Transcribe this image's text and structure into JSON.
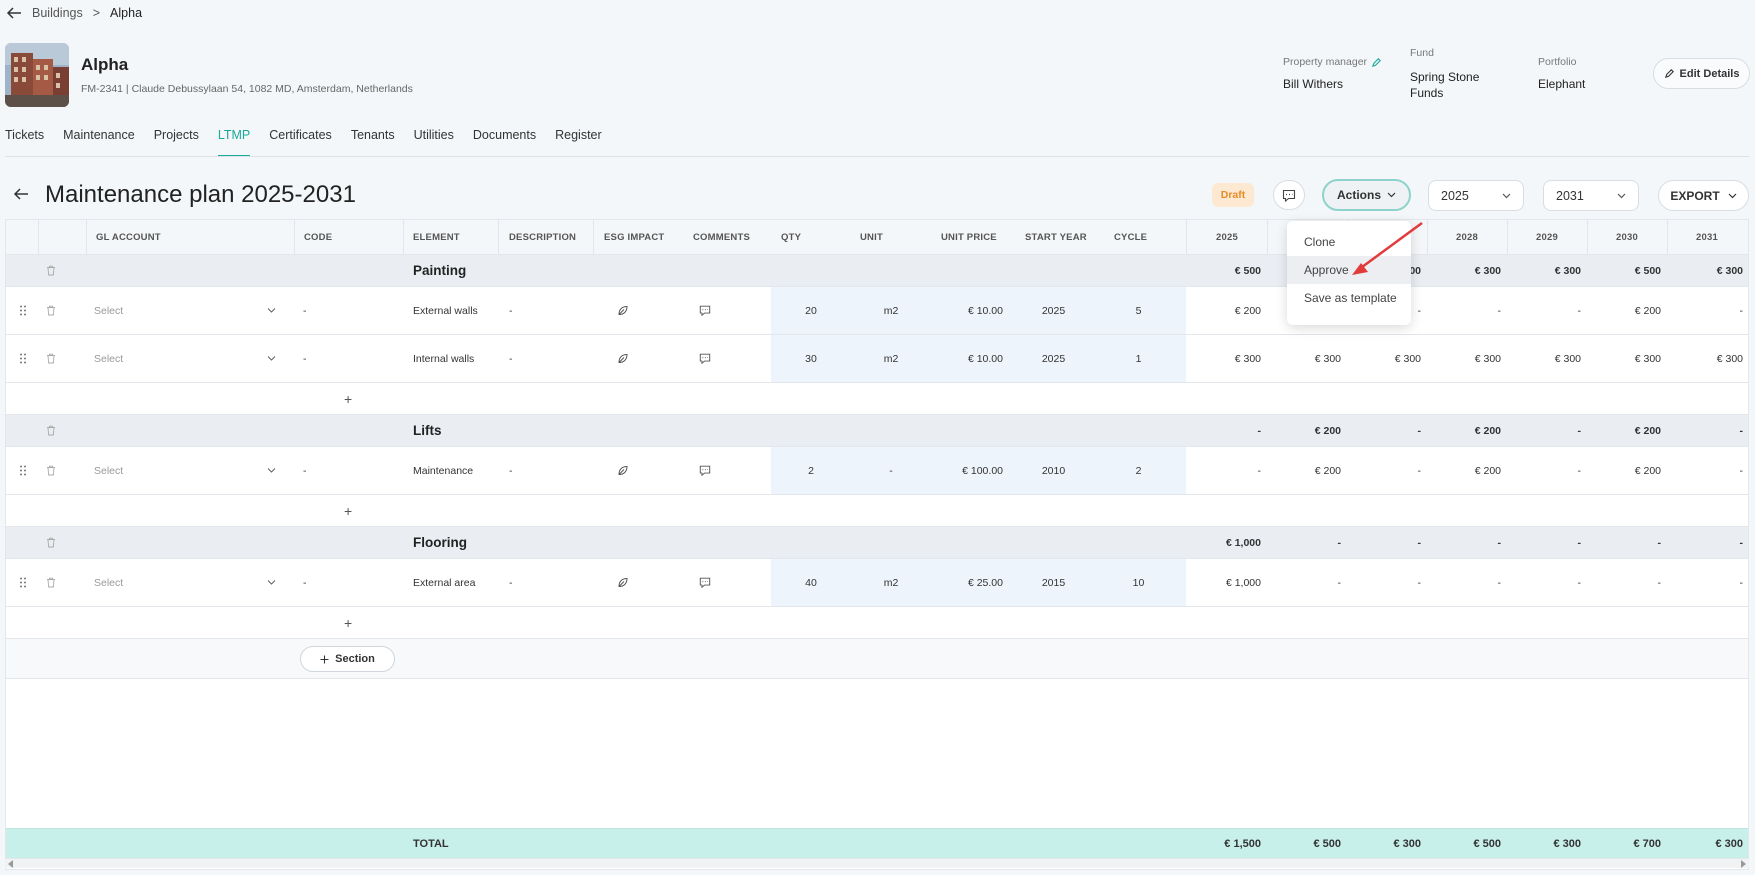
{
  "breadcrumb": {
    "parent": "Buildings",
    "separator": ">",
    "current": "Alpha"
  },
  "building": {
    "name": "Alpha",
    "address": "FM-2341 | Claude Debussylaan 54, 1082 MD, Amsterdam, Netherlands",
    "property_manager_label": "Property manager",
    "property_manager": "Bill Withers",
    "fund_label": "Fund",
    "fund_line1": "Spring Stone",
    "fund_line2": "Funds",
    "portfolio_label": "Portfolio",
    "portfolio": "Elephant",
    "edit_label": "Edit Details"
  },
  "tabs": [
    "Tickets",
    "Maintenance",
    "Projects",
    "LTMP",
    "Certificates",
    "Tenants",
    "Utilities",
    "Documents",
    "Register"
  ],
  "active_tab": "LTMP",
  "plan": {
    "title": "Maintenance plan 2025-2031",
    "status": "Draft",
    "actions_label": "Actions",
    "start_year": "2025",
    "end_year": "2031",
    "export_label": "EXPORT"
  },
  "actions_menu": [
    "Clone",
    "Approve",
    "Save as template"
  ],
  "columns": {
    "gl_account": "GL ACCOUNT",
    "code": "CODE",
    "element": "ELEMENT",
    "description": "DESCRIPTION",
    "esg": "ESG IMPACT",
    "comments": "COMMENTS",
    "qty": "QTY",
    "unit": "UNIT",
    "unit_price": "UNIT PRICE",
    "start_year": "START YEAR",
    "cycle": "CYCLE",
    "years": [
      "2025",
      "",
      "",
      "2028",
      "2029",
      "2030",
      "2031"
    ]
  },
  "sections": [
    {
      "name": "Painting",
      "totals": [
        "€ 500",
        "",
        "00",
        "€ 300",
        "€ 300",
        "€ 500",
        "€ 300"
      ],
      "rows": [
        {
          "gl": "Select",
          "code": "-",
          "element": "External walls",
          "description": "-",
          "qty": "20",
          "unit": "m2",
          "unit_price": "€ 10.00",
          "start_year": "2025",
          "cycle": "5",
          "years": [
            "€ 200",
            "",
            "-",
            "-",
            "-",
            "€ 200",
            "-"
          ]
        },
        {
          "gl": "Select",
          "code": "-",
          "element": "Internal walls",
          "description": "-",
          "qty": "30",
          "unit": "m2",
          "unit_price": "€ 10.00",
          "start_year": "2025",
          "cycle": "1",
          "years": [
            "€ 300",
            "€ 300",
            "€ 300",
            "€ 300",
            "€ 300",
            "€ 300",
            "€ 300"
          ]
        }
      ]
    },
    {
      "name": "Lifts",
      "totals": [
        "-",
        "€ 200",
        "-",
        "€ 200",
        "-",
        "€ 200",
        "-"
      ],
      "rows": [
        {
          "gl": "Select",
          "code": "-",
          "element": "Maintenance",
          "description": "-",
          "qty": "2",
          "unit": "-",
          "unit_price": "€ 100.00",
          "start_year": "2010",
          "cycle": "2",
          "years": [
            "-",
            "€ 200",
            "-",
            "€ 200",
            "-",
            "€ 200",
            "-"
          ]
        }
      ]
    },
    {
      "name": "Flooring",
      "totals": [
        "€ 1,000",
        "-",
        "-",
        "-",
        "-",
        "-",
        "-"
      ],
      "rows": [
        {
          "gl": "Select",
          "code": "-",
          "element": "External area",
          "description": "-",
          "qty": "40",
          "unit": "m2",
          "unit_price": "€ 25.00",
          "start_year": "2015",
          "cycle": "10",
          "years": [
            "€ 1,000",
            "-",
            "-",
            "-",
            "-",
            "-",
            "-"
          ]
        }
      ]
    }
  ],
  "add_row_symbol": "+",
  "add_section_label": "Section",
  "total": {
    "label": "TOTAL",
    "years": [
      "€ 1,500",
      "€ 500",
      "€ 300",
      "€ 500",
      "€ 300",
      "€ 700",
      "€ 300"
    ]
  },
  "icons": [
    "back-arrow-icon",
    "pencil-icon",
    "comment-icon",
    "chevron-down-icon",
    "drag-handle-icon",
    "trash-icon",
    "leaf-icon",
    "plus-icon"
  ]
}
